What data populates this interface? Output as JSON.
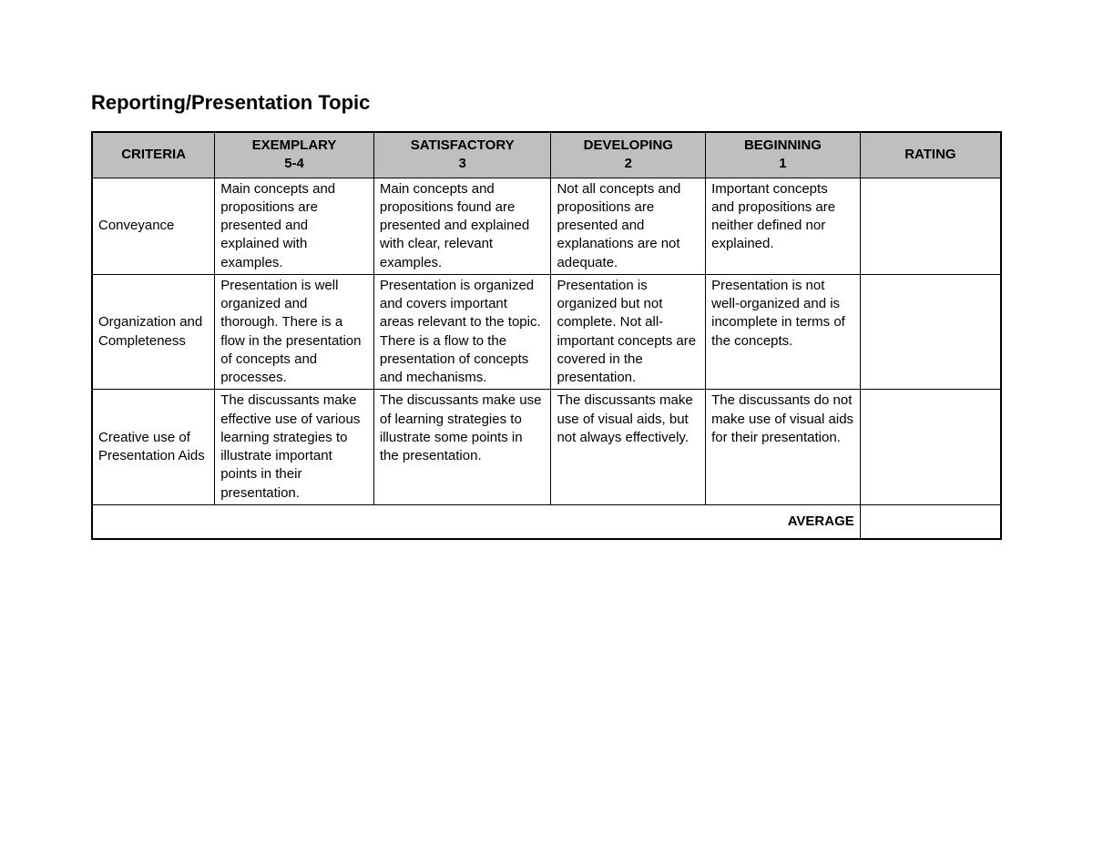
{
  "title": "Reporting/Presentation Topic",
  "table": {
    "header_bg": "#bfbfbf",
    "border_color": "#000000",
    "columns": [
      {
        "key": "criteria",
        "title": "CRITERIA",
        "sub": ""
      },
      {
        "key": "exemplary",
        "title": "EXEMPLARY",
        "sub": "5-4"
      },
      {
        "key": "satisfactory",
        "title": "SATISFACTORY",
        "sub": "3"
      },
      {
        "key": "developing",
        "title": "DEVELOPING",
        "sub": "2"
      },
      {
        "key": "beginning",
        "title": "BEGINNING",
        "sub": "1"
      },
      {
        "key": "rating",
        "title": "RATING",
        "sub": ""
      }
    ],
    "rows": [
      {
        "criteria": "Conveyance",
        "exemplary": "Main concepts and propositions are presented and explained with examples.",
        "satisfactory": "Main concepts and propositions found are presented and explained with clear, relevant examples.",
        "developing": "Not all concepts and propositions are presented and explanations are not adequate.",
        "beginning": "Important concepts and propositions are neither defined nor explained.",
        "rating": ""
      },
      {
        "criteria": "Organization and Completeness",
        "exemplary": "Presentation is well organized and thorough. There is a flow in the presentation of concepts and processes.",
        "satisfactory": "Presentation is organized and covers important areas relevant to the topic. There is a flow to the presentation of concepts and mechanisms.",
        "developing": "Presentation is organized but not complete. Not all-important concepts are covered in the presentation.",
        "beginning": "Presentation is not well-organized and is incomplete in terms of the concepts.",
        "rating": ""
      },
      {
        "criteria": "Creative use of Presentation Aids",
        "exemplary": "The discussants make effective use of various learning strategies to illustrate important points in their presentation.",
        "satisfactory": "The discussants make use of learning strategies to illustrate some points in the presentation.",
        "developing": "The discussants make use of visual aids, but not always effectively.",
        "beginning": "The discussants do not make use of visual aids for their presentation.",
        "rating": ""
      }
    ],
    "footer": {
      "label": "AVERAGE",
      "value": ""
    }
  }
}
